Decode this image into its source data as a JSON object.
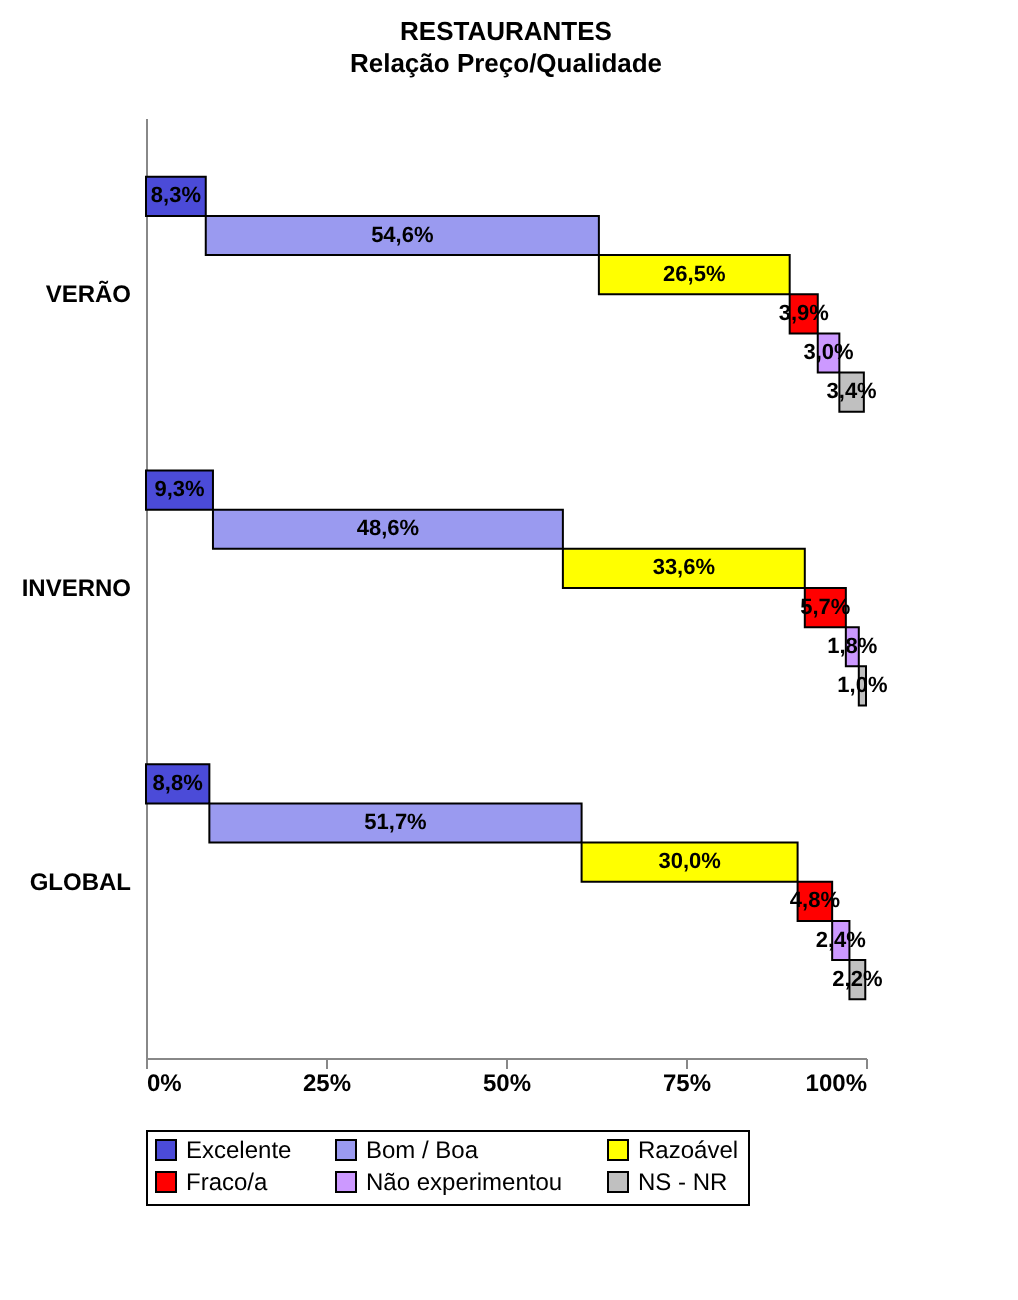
{
  "chart_data": {
    "type": "bar",
    "orientation": "horizontal",
    "stacked": true,
    "title": "RESTAURANTES",
    "subtitle": "Relação Preço/Qualidade",
    "categories": [
      "VERÃO",
      "INVERNO",
      "GLOBAL"
    ],
    "series": [
      {
        "name": "Excelente",
        "color": "#4b4bd8",
        "values": [
          8.3,
          9.3,
          8.8
        ],
        "value_labels": [
          "8,3%",
          "9,3%",
          "8,8%"
        ]
      },
      {
        "name": "Bom / Boa",
        "color": "#9a9af0",
        "values": [
          54.6,
          48.6,
          51.7
        ],
        "value_labels": [
          "54,6%",
          "48,6%",
          "51,7%"
        ]
      },
      {
        "name": "Razoável",
        "color": "#ffff00",
        "values": [
          26.5,
          33.6,
          30.0
        ],
        "value_labels": [
          "26,5%",
          "33,6%",
          "30,0%"
        ]
      },
      {
        "name": "Fraco/a",
        "color": "#ff0000",
        "values": [
          3.9,
          5.7,
          4.8
        ],
        "value_labels": [
          "3,9%",
          "5,7%",
          "4,8%"
        ]
      },
      {
        "name": "Não experimentou",
        "color": "#cc99ff",
        "values": [
          3.0,
          1.8,
          2.4
        ],
        "value_labels": [
          "3,0%",
          "1,8%",
          "2,4%"
        ]
      },
      {
        "name": "NS - NR",
        "color": "#c0c0c0",
        "values": [
          3.4,
          1.0,
          2.2
        ],
        "value_labels": [
          "3,4%",
          "1,0%",
          "2,2%"
        ]
      }
    ],
    "xlim": [
      0,
      100
    ],
    "xticks": [
      {
        "value": 0,
        "label": "0%"
      },
      {
        "value": 25,
        "label": "25%"
      },
      {
        "value": 50,
        "label": "50%"
      },
      {
        "value": 75,
        "label": "75%"
      },
      {
        "value": 100,
        "label": "100%"
      }
    ],
    "legend": "bottom",
    "grid": false
  }
}
